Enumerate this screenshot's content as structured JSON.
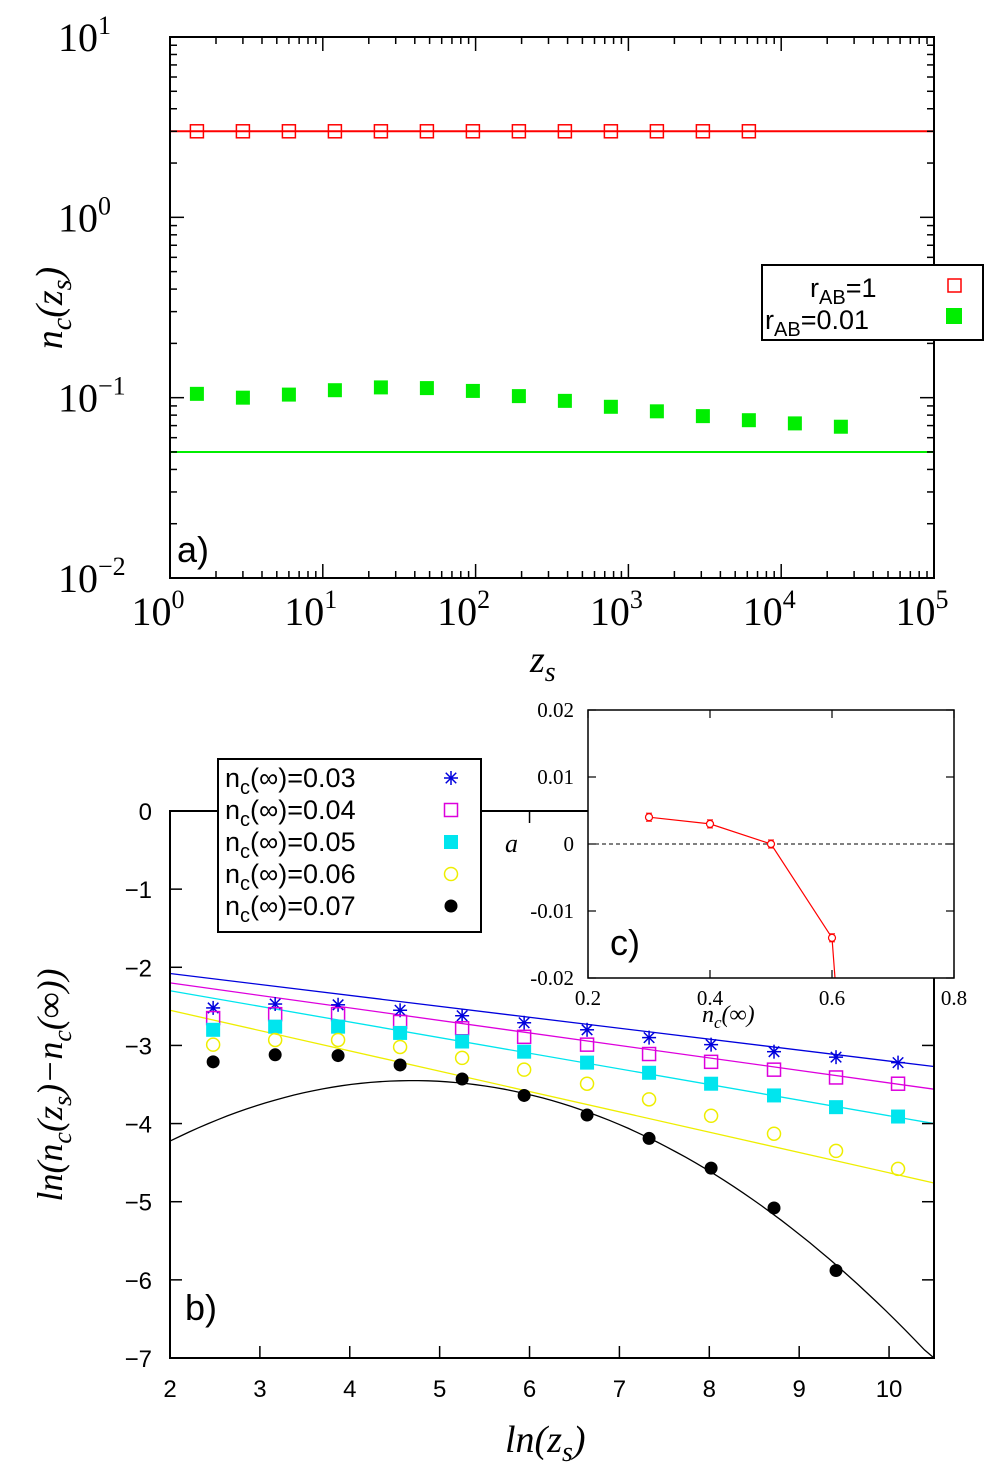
{
  "chart_data": [
    {
      "panel": "a",
      "type": "scatter",
      "panel_label": "a)",
      "xlabel_base": "z",
      "xlabel_sub": "s",
      "ylabel_parts": [
        "n",
        "c",
        "(z",
        "s",
        ")"
      ],
      "xscale": "log",
      "yscale": "log",
      "xlim": [
        1,
        100000
      ],
      "ylim": [
        0.01,
        10
      ],
      "x_ticks": [
        {
          "base": "10",
          "exp": "0"
        },
        {
          "base": "10",
          "exp": "1"
        },
        {
          "base": "10",
          "exp": "2"
        },
        {
          "base": "10",
          "exp": "3"
        },
        {
          "base": "10",
          "exp": "4"
        },
        {
          "base": "10",
          "exp": "5"
        }
      ],
      "y_ticks": [
        {
          "base": "10",
          "exp": "1"
        },
        {
          "base": "10",
          "exp": "0"
        },
        {
          "base": "10",
          "exp": "−1"
        },
        {
          "base": "10",
          "exp": "−2"
        }
      ],
      "series": [
        {
          "name_base": "r",
          "name_sub": "AB",
          "name_tail": "=1",
          "marker": "open-square",
          "color": "#ff0000",
          "x": [
            1.5,
            3,
            6,
            12,
            24,
            48,
            96,
            192,
            384,
            768,
            1536,
            3072,
            6144
          ],
          "y": [
            3.0,
            3.0,
            3.0,
            3.0,
            3.0,
            3.0,
            3.0,
            3.0,
            3.0,
            3.0,
            3.0,
            3.0,
            3.0
          ]
        },
        {
          "name_base": "r",
          "name_sub": "AB",
          "name_tail": "=0.01",
          "marker": "filled-square",
          "color": "#00ee00",
          "x": [
            1.5,
            3,
            6,
            12,
            24,
            48,
            96,
            192,
            384,
            768,
            1536,
            3072,
            6144,
            12288,
            24576
          ],
          "y": [
            0.105,
            0.1,
            0.104,
            0.11,
            0.114,
            0.113,
            0.109,
            0.102,
            0.096,
            0.089,
            0.084,
            0.079,
            0.075,
            0.072,
            0.069
          ]
        }
      ],
      "reference_lines": [
        {
          "y": 3.0,
          "color": "#ff0000"
        },
        {
          "y": 0.05,
          "color": "#00ee00"
        }
      ],
      "legend_position": "right"
    },
    {
      "panel": "b",
      "type": "scatter",
      "panel_label": "b)",
      "xlabel_parts": [
        "ln(z",
        "s",
        ")"
      ],
      "ylabel_parts": [
        "ln(n",
        "c",
        "(z",
        "s",
        ")−n",
        "c",
        "(∞))"
      ],
      "xlim": [
        2,
        10.5
      ],
      "ylim": [
        -7,
        0
      ],
      "x_ticks": [
        "2",
        "3",
        "4",
        "5",
        "6",
        "7",
        "8",
        "9",
        "10"
      ],
      "y_ticks": [
        "0",
        "−1",
        "−2",
        "−3",
        "−4",
        "−5",
        "−6",
        "−7"
      ],
      "series": [
        {
          "name_base": "n",
          "name_sub": "c",
          "name_tail": "(∞)=0.03",
          "marker": "star",
          "color": "#0000dd",
          "x": [
            2.48,
            3.17,
            3.87,
            4.56,
            5.25,
            5.94,
            6.64,
            7.33,
            8.02,
            8.72,
            9.41,
            10.1
          ],
          "y": [
            -2.52,
            -2.47,
            -2.48,
            -2.55,
            -2.62,
            -2.71,
            -2.8,
            -2.9,
            -2.99,
            -3.08,
            -3.15,
            -3.22
          ],
          "fit": [
            -2.08,
            -0.14
          ]
        },
        {
          "name_base": "n",
          "name_sub": "c",
          "name_tail": "(∞)=0.04",
          "marker": "open-square",
          "color": "#dd00dd",
          "x": [
            2.48,
            3.17,
            3.87,
            4.56,
            5.25,
            5.94,
            6.64,
            7.33,
            8.02,
            8.72,
            9.41,
            10.1
          ],
          "y": [
            -2.65,
            -2.6,
            -2.6,
            -2.7,
            -2.78,
            -2.89,
            -2.99,
            -3.11,
            -3.21,
            -3.31,
            -3.41,
            -3.49
          ],
          "fit": [
            -2.2,
            -0.16
          ]
        },
        {
          "name_base": "n",
          "name_sub": "c",
          "name_tail": "(∞)=0.05",
          "marker": "filled-square",
          "color": "#00e5ee",
          "x": [
            2.48,
            3.17,
            3.87,
            4.56,
            5.25,
            5.94,
            6.64,
            7.33,
            8.02,
            8.72,
            9.41,
            10.1
          ],
          "y": [
            -2.8,
            -2.76,
            -2.76,
            -2.84,
            -2.95,
            -3.08,
            -3.22,
            -3.35,
            -3.49,
            -3.64,
            -3.79,
            -3.91
          ],
          "fit": [
            -2.3,
            -0.2
          ]
        },
        {
          "name_base": "n",
          "name_sub": "c",
          "name_tail": "(∞)=0.06",
          "marker": "open-circle",
          "color": "#eeee00",
          "x": [
            2.48,
            3.17,
            3.87,
            4.56,
            5.25,
            5.94,
            6.64,
            7.33,
            8.02,
            8.72,
            9.41,
            10.1
          ],
          "y": [
            -2.99,
            -2.93,
            -2.93,
            -3.02,
            -3.16,
            -3.31,
            -3.49,
            -3.69,
            -3.9,
            -4.13,
            -4.35,
            -4.58
          ],
          "fit": [
            -2.55,
            -0.26
          ]
        },
        {
          "name_base": "n",
          "name_sub": "c",
          "name_tail": "(∞)=0.07",
          "marker": "filled-circle",
          "color": "#000000",
          "x": [
            2.48,
            3.17,
            3.87,
            4.56,
            5.25,
            5.94,
            6.64,
            7.33,
            8.02,
            8.72,
            9.41
          ],
          "y": [
            -3.21,
            -3.12,
            -3.13,
            -3.25,
            -3.43,
            -3.64,
            -3.89,
            -4.19,
            -4.57,
            -5.08,
            -5.88
          ],
          "fit_parabola": {
            "vertex_x": 4.7,
            "vertex_y": -3.45,
            "curvature": -0.1063
          }
        }
      ],
      "legend_position": "top-left"
    },
    {
      "panel": "c",
      "type": "line",
      "panel_label": "c)",
      "xlabel_parts": [
        "n",
        "c",
        "(∞)"
      ],
      "ylabel": "a",
      "xlim": [
        0.2,
        0.8
      ],
      "ylim": [
        -0.02,
        0.02
      ],
      "x_ticks": [
        "0.2",
        "0.4",
        "0.6",
        "0.8"
      ],
      "y_ticks": [
        "0.02",
        "0.01",
        "0",
        "-0.01",
        "-0.02"
      ],
      "series": [
        {
          "name": "a",
          "marker": "open-circle-errorbar",
          "color": "#ff0000",
          "x": [
            0.3,
            0.4,
            0.5,
            0.6,
            0.605
          ],
          "y": [
            0.004,
            0.003,
            0.0,
            -0.014,
            -0.02
          ],
          "err": [
            0.0006,
            0.0006,
            0.0006,
            0.0006,
            0
          ]
        }
      ],
      "reference_lines": [
        {
          "y": 0,
          "style": "dashed",
          "color": "#000000"
        }
      ]
    }
  ]
}
